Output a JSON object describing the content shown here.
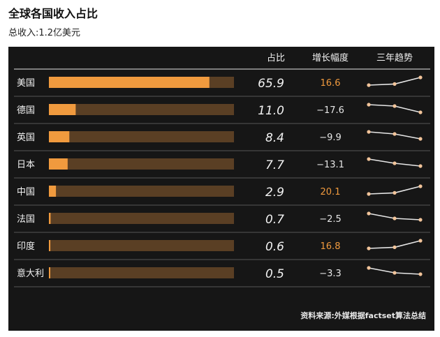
{
  "title": "全球各国收入占比",
  "subtitle": "总收入:1.2亿美元",
  "source": "资料来源:外媒根据factset算法总结",
  "colors": {
    "bar_fill": "#f09a3e",
    "bar_track": "#5a3f24",
    "positive_growth": "#f09a3e",
    "negative_growth": "#e6e6e6",
    "trend_line": "#e6e6e6",
    "trend_dot": "#f2c49a",
    "panel_bg": "#161616"
  },
  "chart_data": {
    "type": "table",
    "columns": [
      "",
      "占比",
      "增长幅度",
      "三年趋势"
    ],
    "rows": [
      {
        "country": "美国",
        "share": 65.9,
        "share_label": "65.9",
        "growth": 16.6,
        "growth_label": "16.6",
        "trend": [
          0.3,
          0.38,
          0.85
        ]
      },
      {
        "country": "德国",
        "share": 11.0,
        "share_label": "11.0",
        "growth": -17.6,
        "growth_label": "−17.6",
        "trend": [
          0.85,
          0.75,
          0.3
        ]
      },
      {
        "country": "英国",
        "share": 8.4,
        "share_label": "8.4",
        "growth": -9.9,
        "growth_label": "−9.9",
        "trend": [
          0.85,
          0.7,
          0.35
        ]
      },
      {
        "country": "日本",
        "share": 7.7,
        "share_label": "7.7",
        "growth": -13.1,
        "growth_label": "−13.1",
        "trend": [
          0.85,
          0.55,
          0.35
        ]
      },
      {
        "country": "中国",
        "share": 2.9,
        "share_label": "2.9",
        "growth": 20.1,
        "growth_label": "20.1",
        "trend": [
          0.3,
          0.38,
          0.85
        ]
      },
      {
        "country": "法国",
        "share": 0.7,
        "share_label": "0.7",
        "growth": -2.5,
        "growth_label": "−2.5",
        "trend": [
          0.85,
          0.5,
          0.4
        ]
      },
      {
        "country": "印度",
        "share": 0.6,
        "share_label": "0.6",
        "growth": 16.8,
        "growth_label": "16.8",
        "trend": [
          0.3,
          0.38,
          0.85
        ]
      },
      {
        "country": "意大利",
        "share": 0.5,
        "share_label": "0.5",
        "growth": -3.3,
        "growth_label": "−3.3",
        "trend": [
          0.85,
          0.5,
          0.4
        ]
      }
    ],
    "share_max": 76
  }
}
